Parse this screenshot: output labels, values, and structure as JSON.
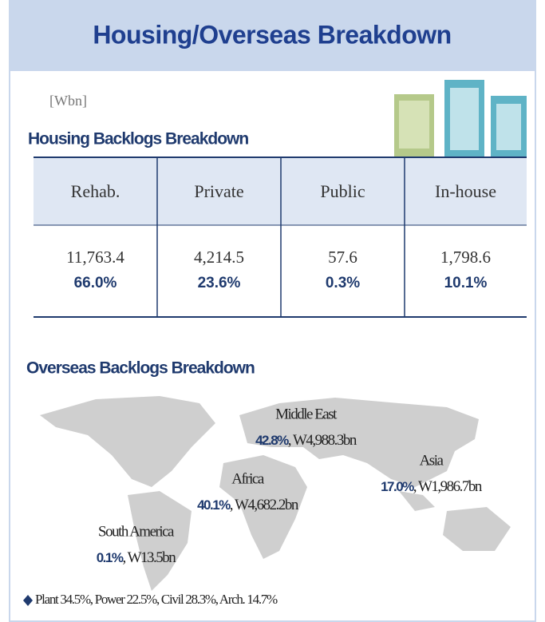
{
  "title": "Housing/Overseas Breakdown",
  "unit": "[Wbn]",
  "housing": {
    "heading": "Housing Backlogs Breakdown",
    "table": {
      "headers": [
        "Rehab.",
        "Private",
        "Public",
        "In-house"
      ],
      "values": [
        "11,763.4",
        "4,214.5",
        "57.6",
        "1,798.6"
      ],
      "shares": [
        "66.0%",
        "23.6%",
        "0.3%",
        "10.1%"
      ]
    }
  },
  "overseas": {
    "heading": "Overseas Backlogs Breakdown",
    "regions": [
      {
        "name": "Middle East",
        "share": "42.8%",
        "amount": ", W4,988.3bn"
      },
      {
        "name": "Asia",
        "share": "17.0%",
        "amount": ", W1,986.7bn"
      },
      {
        "name": "Africa",
        "share": "40.1%",
        "amount": ", W4,682.2bn"
      },
      {
        "name": "South America",
        "share": "0.1%",
        "amount": ", W13.5bn"
      }
    ],
    "footnote": "Plant 34.5%, Power 22.5%, Civil 28.3%, Arch. 14.7%"
  }
}
